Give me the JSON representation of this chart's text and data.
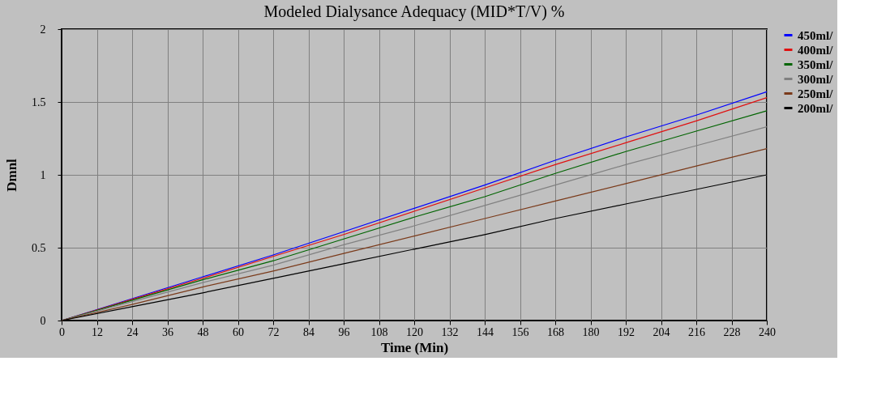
{
  "chart_data": {
    "type": "line",
    "title": "Modeled Dialysance Adequacy (MID*T/V) %",
    "xlabel": "Time (Min)",
    "ylabel": "Dmnl",
    "x": [
      0,
      24,
      48,
      72,
      96,
      120,
      144,
      168,
      192,
      216,
      240
    ],
    "xlim": [
      0,
      240
    ],
    "xticks": [
      0,
      12,
      24,
      36,
      48,
      60,
      72,
      84,
      96,
      108,
      120,
      132,
      144,
      156,
      168,
      180,
      192,
      204,
      216,
      228,
      240
    ],
    "ylim": [
      0,
      2
    ],
    "yticks": [
      0,
      0.5,
      1,
      1.5,
      2
    ],
    "grid": true,
    "legend": "right",
    "line_style": "solid",
    "series": [
      {
        "name": "450ml/",
        "color": "#0000ff",
        "values": [
          0,
          0.15,
          0.3,
          0.45,
          0.61,
          0.77,
          0.93,
          1.1,
          1.26,
          1.41,
          1.57
        ]
      },
      {
        "name": "400ml/",
        "color": "#e01010",
        "values": [
          0,
          0.145,
          0.29,
          0.44,
          0.59,
          0.75,
          0.91,
          1.07,
          1.22,
          1.37,
          1.53
        ]
      },
      {
        "name": "350ml/",
        "color": "#006400",
        "values": [
          0,
          0.14,
          0.28,
          0.41,
          0.56,
          0.71,
          0.85,
          1.01,
          1.16,
          1.3,
          1.44
        ]
      },
      {
        "name": "300ml/",
        "color": "#808080",
        "values": [
          0,
          0.13,
          0.26,
          0.38,
          0.52,
          0.65,
          0.79,
          0.93,
          1.07,
          1.2,
          1.33
        ]
      },
      {
        "name": "250ml/",
        "color": "#7a3a1a",
        "values": [
          0,
          0.11,
          0.23,
          0.34,
          0.46,
          0.58,
          0.7,
          0.82,
          0.94,
          1.06,
          1.18
        ]
      },
      {
        "name": "200ml/",
        "color": "#000000",
        "values": [
          0,
          0.095,
          0.19,
          0.29,
          0.39,
          0.49,
          0.59,
          0.7,
          0.8,
          0.9,
          1.0
        ]
      }
    ]
  }
}
